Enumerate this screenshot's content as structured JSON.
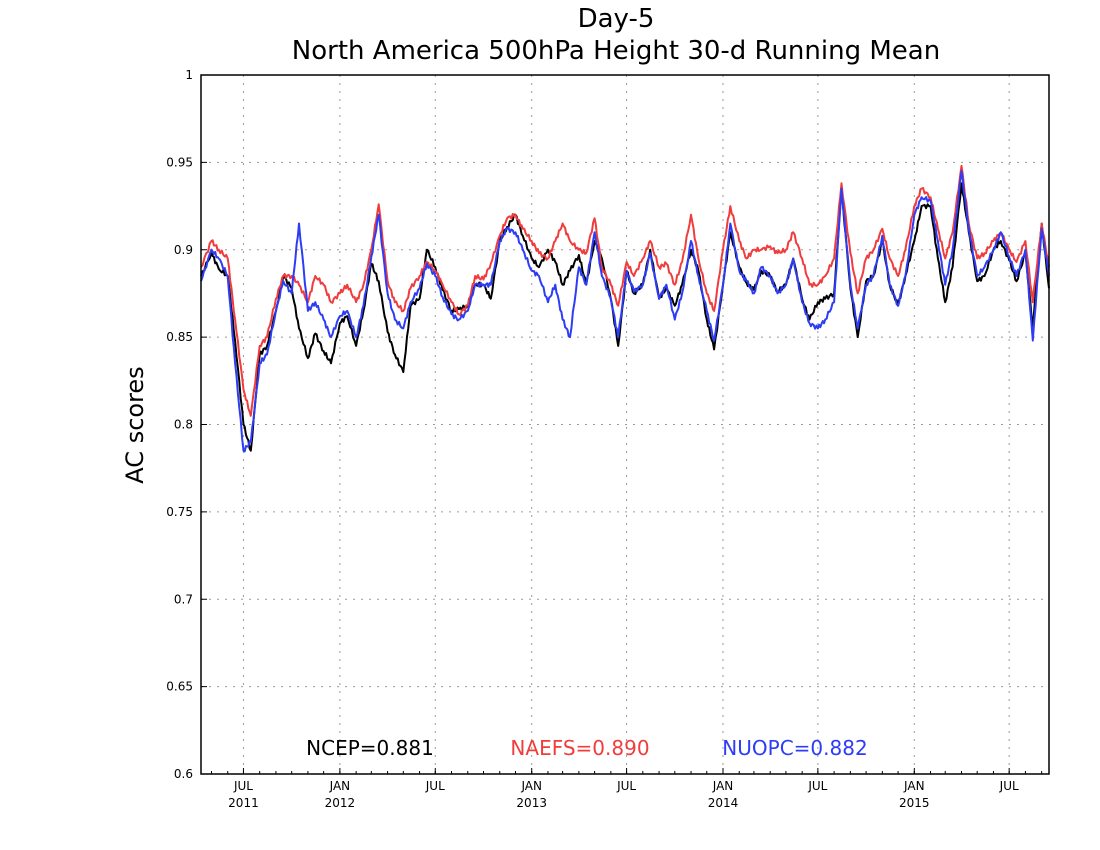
{
  "chart_data": {
    "type": "line",
    "title": "Day-5",
    "subtitle": "North America 500hPa Height 30-d Running Mean",
    "ylabel": "AC scores",
    "xlabel": "",
    "ylim": [
      0.6,
      1.0
    ],
    "xlim": [
      "2011-04-11",
      "2015-09-15"
    ],
    "grid": true,
    "legend_placement": "bottom-center",
    "y_ticks": [
      "0.6",
      "0.65",
      "0.7",
      "0.75",
      "0.8",
      "0.85",
      "0.9",
      "0.95",
      "1"
    ],
    "x_ticks": [
      {
        "date": "2011-07-01",
        "label": "JUL",
        "year": "2011"
      },
      {
        "date": "2012-01-01",
        "label": "JAN",
        "year": "2012"
      },
      {
        "date": "2012-07-01",
        "label": "JUL",
        "year": ""
      },
      {
        "date": "2013-01-01",
        "label": "JAN",
        "year": "2013"
      },
      {
        "date": "2013-07-01",
        "label": "JUL",
        "year": ""
      },
      {
        "date": "2014-01-01",
        "label": "JAN",
        "year": "2014"
      },
      {
        "date": "2014-07-01",
        "label": "JUL",
        "year": ""
      },
      {
        "date": "2015-01-01",
        "label": "JAN",
        "year": "2015"
      },
      {
        "date": "2015-07-01",
        "label": "JUL",
        "year": ""
      }
    ],
    "legend": [
      {
        "text": "NCEP=0.881",
        "color": "#000000"
      },
      {
        "text": "NAEFS=0.890",
        "color": "#f03c3c"
      },
      {
        "text": "NUOPC=0.882",
        "color": "#2d3cf5"
      }
    ],
    "series": [
      {
        "color": "#000000",
        "x": [
          "2011-04-11",
          "2011-05-01",
          "2011-05-15",
          "2011-06-01",
          "2011-06-15",
          "2011-07-01",
          "2011-07-15",
          "2011-08-01",
          "2011-08-15",
          "2011-09-01",
          "2011-09-15",
          "2011-10-01",
          "2011-10-15",
          "2011-11-01",
          "2011-11-15",
          "2011-12-01",
          "2011-12-15",
          "2012-01-01",
          "2012-01-15",
          "2012-02-01",
          "2012-02-15",
          "2012-03-01",
          "2012-03-15",
          "2012-04-01",
          "2012-04-15",
          "2012-05-01",
          "2012-05-15",
          "2012-06-01",
          "2012-06-15",
          "2012-07-01",
          "2012-07-15",
          "2012-08-01",
          "2012-08-15",
          "2012-09-01",
          "2012-09-15",
          "2012-10-01",
          "2012-10-15",
          "2012-11-01",
          "2012-11-15",
          "2012-12-01",
          "2012-12-15",
          "2013-01-01",
          "2013-01-15",
          "2013-02-01",
          "2013-02-15",
          "2013-03-01",
          "2013-03-15",
          "2013-04-01",
          "2013-04-15",
          "2013-05-01",
          "2013-05-15",
          "2013-06-01",
          "2013-06-15",
          "2013-07-01",
          "2013-07-15",
          "2013-08-01",
          "2013-08-15",
          "2013-09-01",
          "2013-09-15",
          "2013-10-01",
          "2013-10-15",
          "2013-11-01",
          "2013-11-15",
          "2013-12-01",
          "2013-12-15",
          "2014-01-01",
          "2014-01-15",
          "2014-02-01",
          "2014-02-15",
          "2014-03-01",
          "2014-03-15",
          "2014-04-01",
          "2014-04-15",
          "2014-05-01",
          "2014-05-15",
          "2014-06-01",
          "2014-06-15",
          "2014-07-01",
          "2014-07-15",
          "2014-08-01",
          "2014-08-15",
          "2014-09-01",
          "2014-09-15",
          "2014-10-01",
          "2014-10-15",
          "2014-11-01",
          "2014-11-15",
          "2014-12-01",
          "2014-12-15",
          "2015-01-01",
          "2015-01-15",
          "2015-02-01",
          "2015-02-15",
          "2015-03-01",
          "2015-03-15",
          "2015-04-01",
          "2015-04-15",
          "2015-05-01",
          "2015-05-15",
          "2015-06-01",
          "2015-06-15",
          "2015-07-01",
          "2015-07-15",
          "2015-08-01",
          "2015-08-15",
          "2015-09-01",
          "2015-09-15"
        ],
        "values": [
          0.885,
          0.898,
          0.889,
          0.885,
          0.848,
          0.8,
          0.785,
          0.84,
          0.845,
          0.865,
          0.885,
          0.878,
          0.855,
          0.838,
          0.852,
          0.842,
          0.835,
          0.858,
          0.862,
          0.845,
          0.865,
          0.892,
          0.882,
          0.853,
          0.84,
          0.83,
          0.868,
          0.872,
          0.9,
          0.89,
          0.877,
          0.865,
          0.866,
          0.868,
          0.88,
          0.88,
          0.872,
          0.905,
          0.913,
          0.92,
          0.908,
          0.895,
          0.89,
          0.9,
          0.893,
          0.88,
          0.888,
          0.897,
          0.88,
          0.905,
          0.895,
          0.872,
          0.845,
          0.888,
          0.875,
          0.88,
          0.9,
          0.872,
          0.878,
          0.868,
          0.88,
          0.9,
          0.888,
          0.86,
          0.843,
          0.88,
          0.91,
          0.89,
          0.881,
          0.877,
          0.888,
          0.885,
          0.876,
          0.88,
          0.895,
          0.872,
          0.86,
          0.87,
          0.872,
          0.875,
          0.935,
          0.878,
          0.85,
          0.882,
          0.885,
          0.905,
          0.88,
          0.868,
          0.885,
          0.905,
          0.925,
          0.925,
          0.895,
          0.87,
          0.89,
          0.938,
          0.91,
          0.882,
          0.885,
          0.9,
          0.905,
          0.894,
          0.882,
          0.898,
          0.856,
          0.915,
          0.878
        ]
      },
      {
        "color": "#f03c3c",
        "x": [
          "2011-04-11",
          "2011-05-01",
          "2011-05-15",
          "2011-06-01",
          "2011-06-15",
          "2011-07-01",
          "2011-07-15",
          "2011-08-01",
          "2011-08-15",
          "2011-09-01",
          "2011-09-15",
          "2011-10-01",
          "2011-10-15",
          "2011-11-01",
          "2011-11-15",
          "2011-12-01",
          "2011-12-15",
          "2012-01-01",
          "2012-01-15",
          "2012-02-01",
          "2012-02-15",
          "2012-03-01",
          "2012-03-15",
          "2012-04-01",
          "2012-04-15",
          "2012-05-01",
          "2012-05-15",
          "2012-06-01",
          "2012-06-15",
          "2012-07-01",
          "2012-07-15",
          "2012-08-01",
          "2012-08-15",
          "2012-09-01",
          "2012-09-15",
          "2012-10-01",
          "2012-10-15",
          "2012-11-01",
          "2012-11-15",
          "2012-12-01",
          "2012-12-15",
          "2013-01-01",
          "2013-01-15",
          "2013-02-01",
          "2013-02-15",
          "2013-03-01",
          "2013-03-15",
          "2013-04-01",
          "2013-04-15",
          "2013-05-01",
          "2013-05-15",
          "2013-06-01",
          "2013-06-15",
          "2013-07-01",
          "2013-07-15",
          "2013-08-01",
          "2013-08-15",
          "2013-09-01",
          "2013-09-15",
          "2013-10-01",
          "2013-10-15",
          "2013-11-01",
          "2013-11-15",
          "2013-12-01",
          "2013-12-15",
          "2014-01-01",
          "2014-01-15",
          "2014-02-01",
          "2014-02-15",
          "2014-03-01",
          "2014-03-15",
          "2014-04-01",
          "2014-04-15",
          "2014-05-01",
          "2014-05-15",
          "2014-06-01",
          "2014-06-15",
          "2014-07-01",
          "2014-07-15",
          "2014-08-01",
          "2014-08-15",
          "2014-09-01",
          "2014-09-15",
          "2014-10-01",
          "2014-10-15",
          "2014-11-01",
          "2014-11-15",
          "2014-12-01",
          "2014-12-15",
          "2015-01-01",
          "2015-01-15",
          "2015-02-01",
          "2015-02-15",
          "2015-03-01",
          "2015-03-15",
          "2015-04-01",
          "2015-04-15",
          "2015-05-01",
          "2015-05-15",
          "2015-06-01",
          "2015-06-15",
          "2015-07-01",
          "2015-07-15",
          "2015-08-01",
          "2015-08-15",
          "2015-09-01",
          "2015-09-15"
        ],
        "values": [
          0.89,
          0.905,
          0.9,
          0.895,
          0.86,
          0.82,
          0.805,
          0.845,
          0.85,
          0.872,
          0.885,
          0.885,
          0.88,
          0.87,
          0.885,
          0.88,
          0.87,
          0.875,
          0.88,
          0.87,
          0.88,
          0.9,
          0.926,
          0.882,
          0.87,
          0.865,
          0.878,
          0.885,
          0.893,
          0.888,
          0.88,
          0.87,
          0.863,
          0.868,
          0.885,
          0.883,
          0.892,
          0.908,
          0.918,
          0.92,
          0.912,
          0.905,
          0.898,
          0.895,
          0.905,
          0.915,
          0.905,
          0.9,
          0.898,
          0.918,
          0.89,
          0.88,
          0.868,
          0.893,
          0.885,
          0.895,
          0.905,
          0.89,
          0.892,
          0.88,
          0.893,
          0.92,
          0.895,
          0.875,
          0.865,
          0.9,
          0.925,
          0.905,
          0.895,
          0.9,
          0.9,
          0.902,
          0.898,
          0.9,
          0.91,
          0.895,
          0.88,
          0.88,
          0.885,
          0.895,
          0.938,
          0.898,
          0.875,
          0.895,
          0.9,
          0.912,
          0.895,
          0.885,
          0.9,
          0.925,
          0.935,
          0.93,
          0.912,
          0.895,
          0.91,
          0.948,
          0.915,
          0.895,
          0.898,
          0.905,
          0.91,
          0.9,
          0.893,
          0.905,
          0.87,
          0.915,
          0.89
        ]
      },
      {
        "color": "#2d3cf5",
        "x": [
          "2011-04-11",
          "2011-05-01",
          "2011-05-15",
          "2011-06-01",
          "2011-06-15",
          "2011-07-01",
          "2011-07-15",
          "2011-08-01",
          "2011-08-15",
          "2011-09-01",
          "2011-09-15",
          "2011-10-01",
          "2011-10-15",
          "2011-11-01",
          "2011-11-15",
          "2011-12-01",
          "2011-12-15",
          "2012-01-01",
          "2012-01-15",
          "2012-02-01",
          "2012-02-15",
          "2012-03-01",
          "2012-03-15",
          "2012-04-01",
          "2012-04-15",
          "2012-05-01",
          "2012-05-15",
          "2012-06-01",
          "2012-06-15",
          "2012-07-01",
          "2012-07-15",
          "2012-08-01",
          "2012-08-15",
          "2012-09-01",
          "2012-09-15",
          "2012-10-01",
          "2012-10-15",
          "2012-11-01",
          "2012-11-15",
          "2012-12-01",
          "2012-12-15",
          "2013-01-01",
          "2013-01-15",
          "2013-02-01",
          "2013-02-15",
          "2013-03-01",
          "2013-03-15",
          "2013-04-01",
          "2013-04-15",
          "2013-05-01",
          "2013-05-15",
          "2013-06-01",
          "2013-06-15",
          "2013-07-01",
          "2013-07-15",
          "2013-08-01",
          "2013-08-15",
          "2013-09-01",
          "2013-09-15",
          "2013-10-01",
          "2013-10-15",
          "2013-11-01",
          "2013-11-15",
          "2013-12-01",
          "2013-12-15",
          "2014-01-01",
          "2014-01-15",
          "2014-02-01",
          "2014-02-15",
          "2014-03-01",
          "2014-03-15",
          "2014-04-01",
          "2014-04-15",
          "2014-05-01",
          "2014-05-15",
          "2014-06-01",
          "2014-06-15",
          "2014-07-01",
          "2014-07-15",
          "2014-08-01",
          "2014-08-15",
          "2014-09-01",
          "2014-09-15",
          "2014-10-01",
          "2014-10-15",
          "2014-11-01",
          "2014-11-15",
          "2014-12-01",
          "2014-12-15",
          "2015-01-01",
          "2015-01-15",
          "2015-02-01",
          "2015-02-15",
          "2015-03-01",
          "2015-03-15",
          "2015-04-01",
          "2015-04-15",
          "2015-05-01",
          "2015-05-15",
          "2015-06-01",
          "2015-06-15",
          "2015-07-01",
          "2015-07-15",
          "2015-08-01",
          "2015-08-15",
          "2015-09-01",
          "2015-09-15"
        ],
        "values": [
          0.882,
          0.9,
          0.895,
          0.885,
          0.835,
          0.785,
          0.79,
          0.835,
          0.84,
          0.865,
          0.882,
          0.875,
          0.915,
          0.865,
          0.87,
          0.86,
          0.85,
          0.862,
          0.865,
          0.85,
          0.868,
          0.896,
          0.92,
          0.875,
          0.86,
          0.855,
          0.87,
          0.878,
          0.892,
          0.885,
          0.873,
          0.863,
          0.86,
          0.865,
          0.88,
          0.88,
          0.88,
          0.905,
          0.912,
          0.91,
          0.9,
          0.888,
          0.885,
          0.87,
          0.88,
          0.86,
          0.85,
          0.89,
          0.88,
          0.91,
          0.885,
          0.872,
          0.85,
          0.888,
          0.876,
          0.88,
          0.898,
          0.872,
          0.88,
          0.86,
          0.875,
          0.905,
          0.885,
          0.865,
          0.848,
          0.88,
          0.915,
          0.888,
          0.882,
          0.875,
          0.89,
          0.885,
          0.875,
          0.88,
          0.895,
          0.87,
          0.858,
          0.855,
          0.86,
          0.87,
          0.935,
          0.88,
          0.855,
          0.88,
          0.885,
          0.908,
          0.88,
          0.868,
          0.885,
          0.92,
          0.93,
          0.928,
          0.905,
          0.88,
          0.9,
          0.945,
          0.912,
          0.885,
          0.89,
          0.9,
          0.91,
          0.896,
          0.885,
          0.9,
          0.848,
          0.912,
          0.885
        ]
      }
    ]
  }
}
